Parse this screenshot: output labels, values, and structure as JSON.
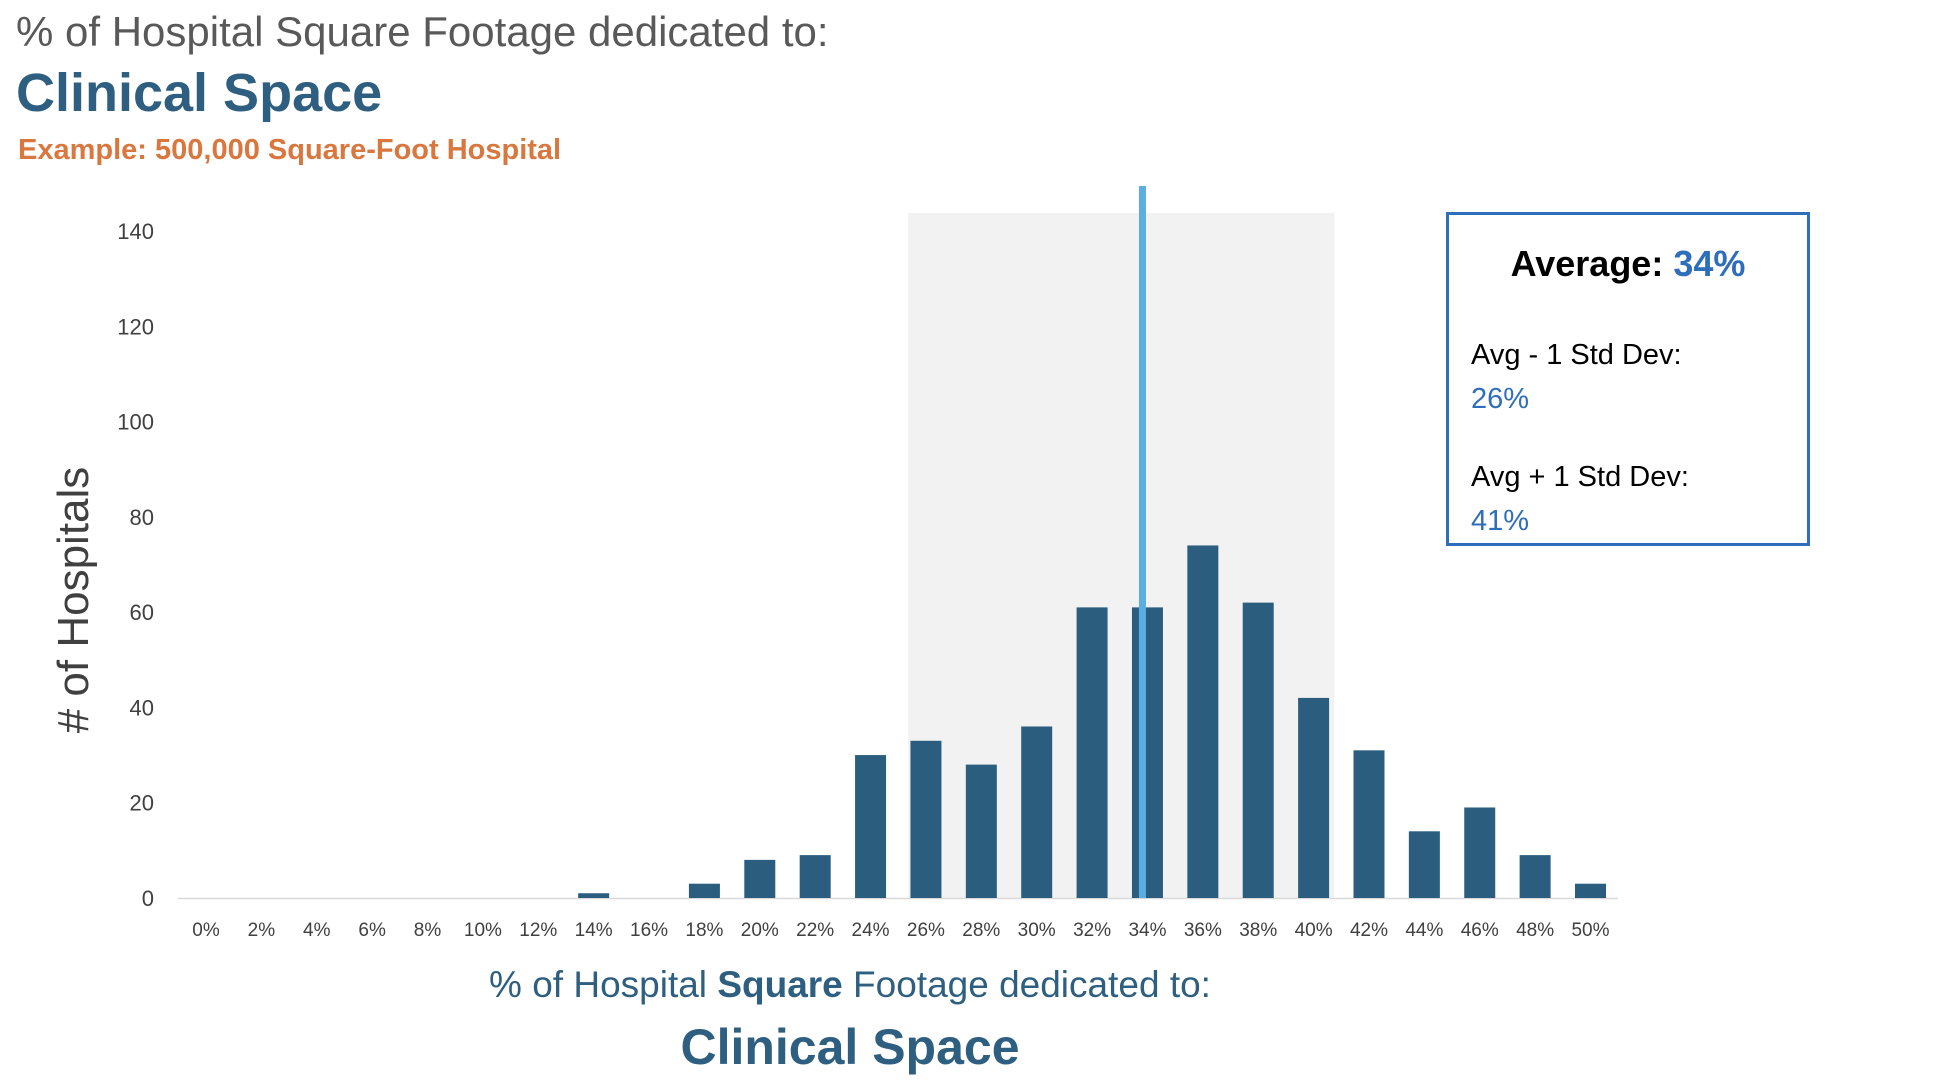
{
  "header": {
    "line1": "% of Hospital Square Footage dedicated to:",
    "line2": "Clinical Space",
    "line3": "Example: 500,000 Square-Foot Hospital"
  },
  "info_box": {
    "average_label": "Average:",
    "average_value": "34%",
    "minus_sd_label": "Avg - 1 Std Dev:",
    "minus_sd_value": "26%",
    "plus_sd_label": "Avg + 1 Std Dev:",
    "plus_sd_value": "41%"
  },
  "x_axis_title": {
    "pre": "% of Hospital ",
    "bold": "Square",
    "post": " Footage dedicated to:",
    "line2": "Clinical Space"
  },
  "colors": {
    "bar": "#2B5E7E",
    "average_line": "#5AAEE0",
    "std_band": "#F2F2F2",
    "box_border": "#2F6EBA",
    "accent_orange": "#D9773F",
    "title_blue": "#2E5F80"
  },
  "chart_data": {
    "type": "bar",
    "title": "% of Hospital Square Footage dedicated to: Clinical Space",
    "subtitle": "Example: 500,000 Square-Foot Hospital",
    "xlabel": "% of Hospital Square Footage dedicated to: Clinical Space",
    "ylabel": "# of Hospitals",
    "categories": [
      "0%",
      "2%",
      "4%",
      "6%",
      "8%",
      "10%",
      "12%",
      "14%",
      "16%",
      "18%",
      "20%",
      "22%",
      "24%",
      "26%",
      "28%",
      "30%",
      "32%",
      "34%",
      "36%",
      "38%",
      "40%",
      "42%",
      "44%",
      "46%",
      "48%",
      "50%"
    ],
    "values": [
      0,
      0,
      0,
      0,
      0,
      0,
      0,
      1,
      0,
      3,
      8,
      9,
      30,
      33,
      28,
      36,
      61,
      61,
      74,
      62,
      42,
      31,
      14,
      19,
      9,
      3
    ],
    "ylim": [
      0,
      140
    ],
    "yticks": [
      0,
      20,
      40,
      60,
      80,
      100,
      120,
      140
    ],
    "grid": false,
    "average_percent": 34,
    "std_band_percent": [
      26,
      41
    ]
  }
}
